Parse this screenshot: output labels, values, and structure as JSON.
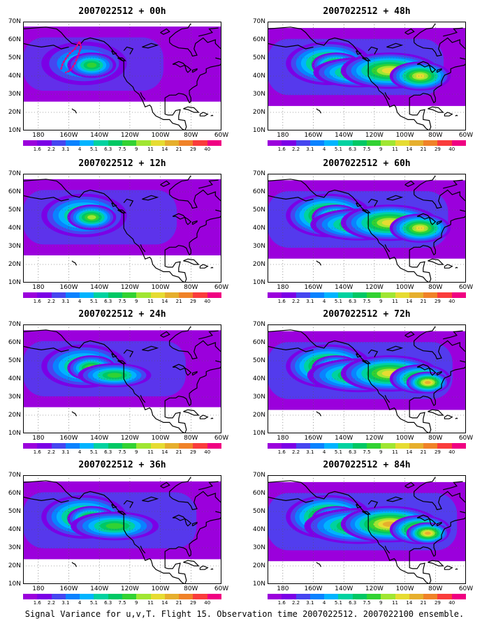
{
  "panels": [
    {
      "title": "2007022512 + 00h",
      "lead_hours": 0,
      "intensity": 0.35,
      "flight_track": true
    },
    {
      "title": "2007022512 + 12h",
      "lead_hours": 12,
      "intensity": 0.5,
      "flight_track": false
    },
    {
      "title": "2007022512 + 24h",
      "lead_hours": 24,
      "intensity": 0.6,
      "flight_track": false
    },
    {
      "title": "2007022512 + 36h",
      "lead_hours": 36,
      "intensity": 0.72,
      "flight_track": false
    },
    {
      "title": "2007022512 + 48h",
      "lead_hours": 48,
      "intensity": 0.75,
      "flight_track": false
    },
    {
      "title": "2007022512 + 60h",
      "lead_hours": 60,
      "intensity": 0.8,
      "flight_track": false
    },
    {
      "title": "2007022512 + 72h",
      "lead_hours": 72,
      "intensity": 0.85,
      "flight_track": false
    },
    {
      "title": "2007022512 + 84h",
      "lead_hours": 84,
      "intensity": 0.9,
      "flight_track": false
    }
  ],
  "lat_labels": [
    "70N",
    "60N",
    "50N",
    "40N",
    "30N",
    "20N",
    "10N"
  ],
  "lon_labels": [
    "180",
    "160W",
    "140W",
    "120W",
    "100W",
    "80W",
    "60W"
  ],
  "colorbar": {
    "labels": [
      "1.6",
      "2.2",
      "3.1",
      "4",
      "5.1",
      "6.3",
      "7.5",
      "9",
      "11",
      "14",
      "21",
      "29",
      "40"
    ],
    "colors": [
      "#9b00dc",
      "#7b00e6",
      "#4646f0",
      "#0a82ff",
      "#00b4ff",
      "#00d2a0",
      "#00c864",
      "#32d232",
      "#a0e632",
      "#e6dc32",
      "#e6af2d",
      "#f08228",
      "#fa3c3c",
      "#f00082"
    ]
  },
  "caption": "Signal Variance for u,v,T. Flight 15. Observation time 2007022512. 2007022100 ensemble."
}
